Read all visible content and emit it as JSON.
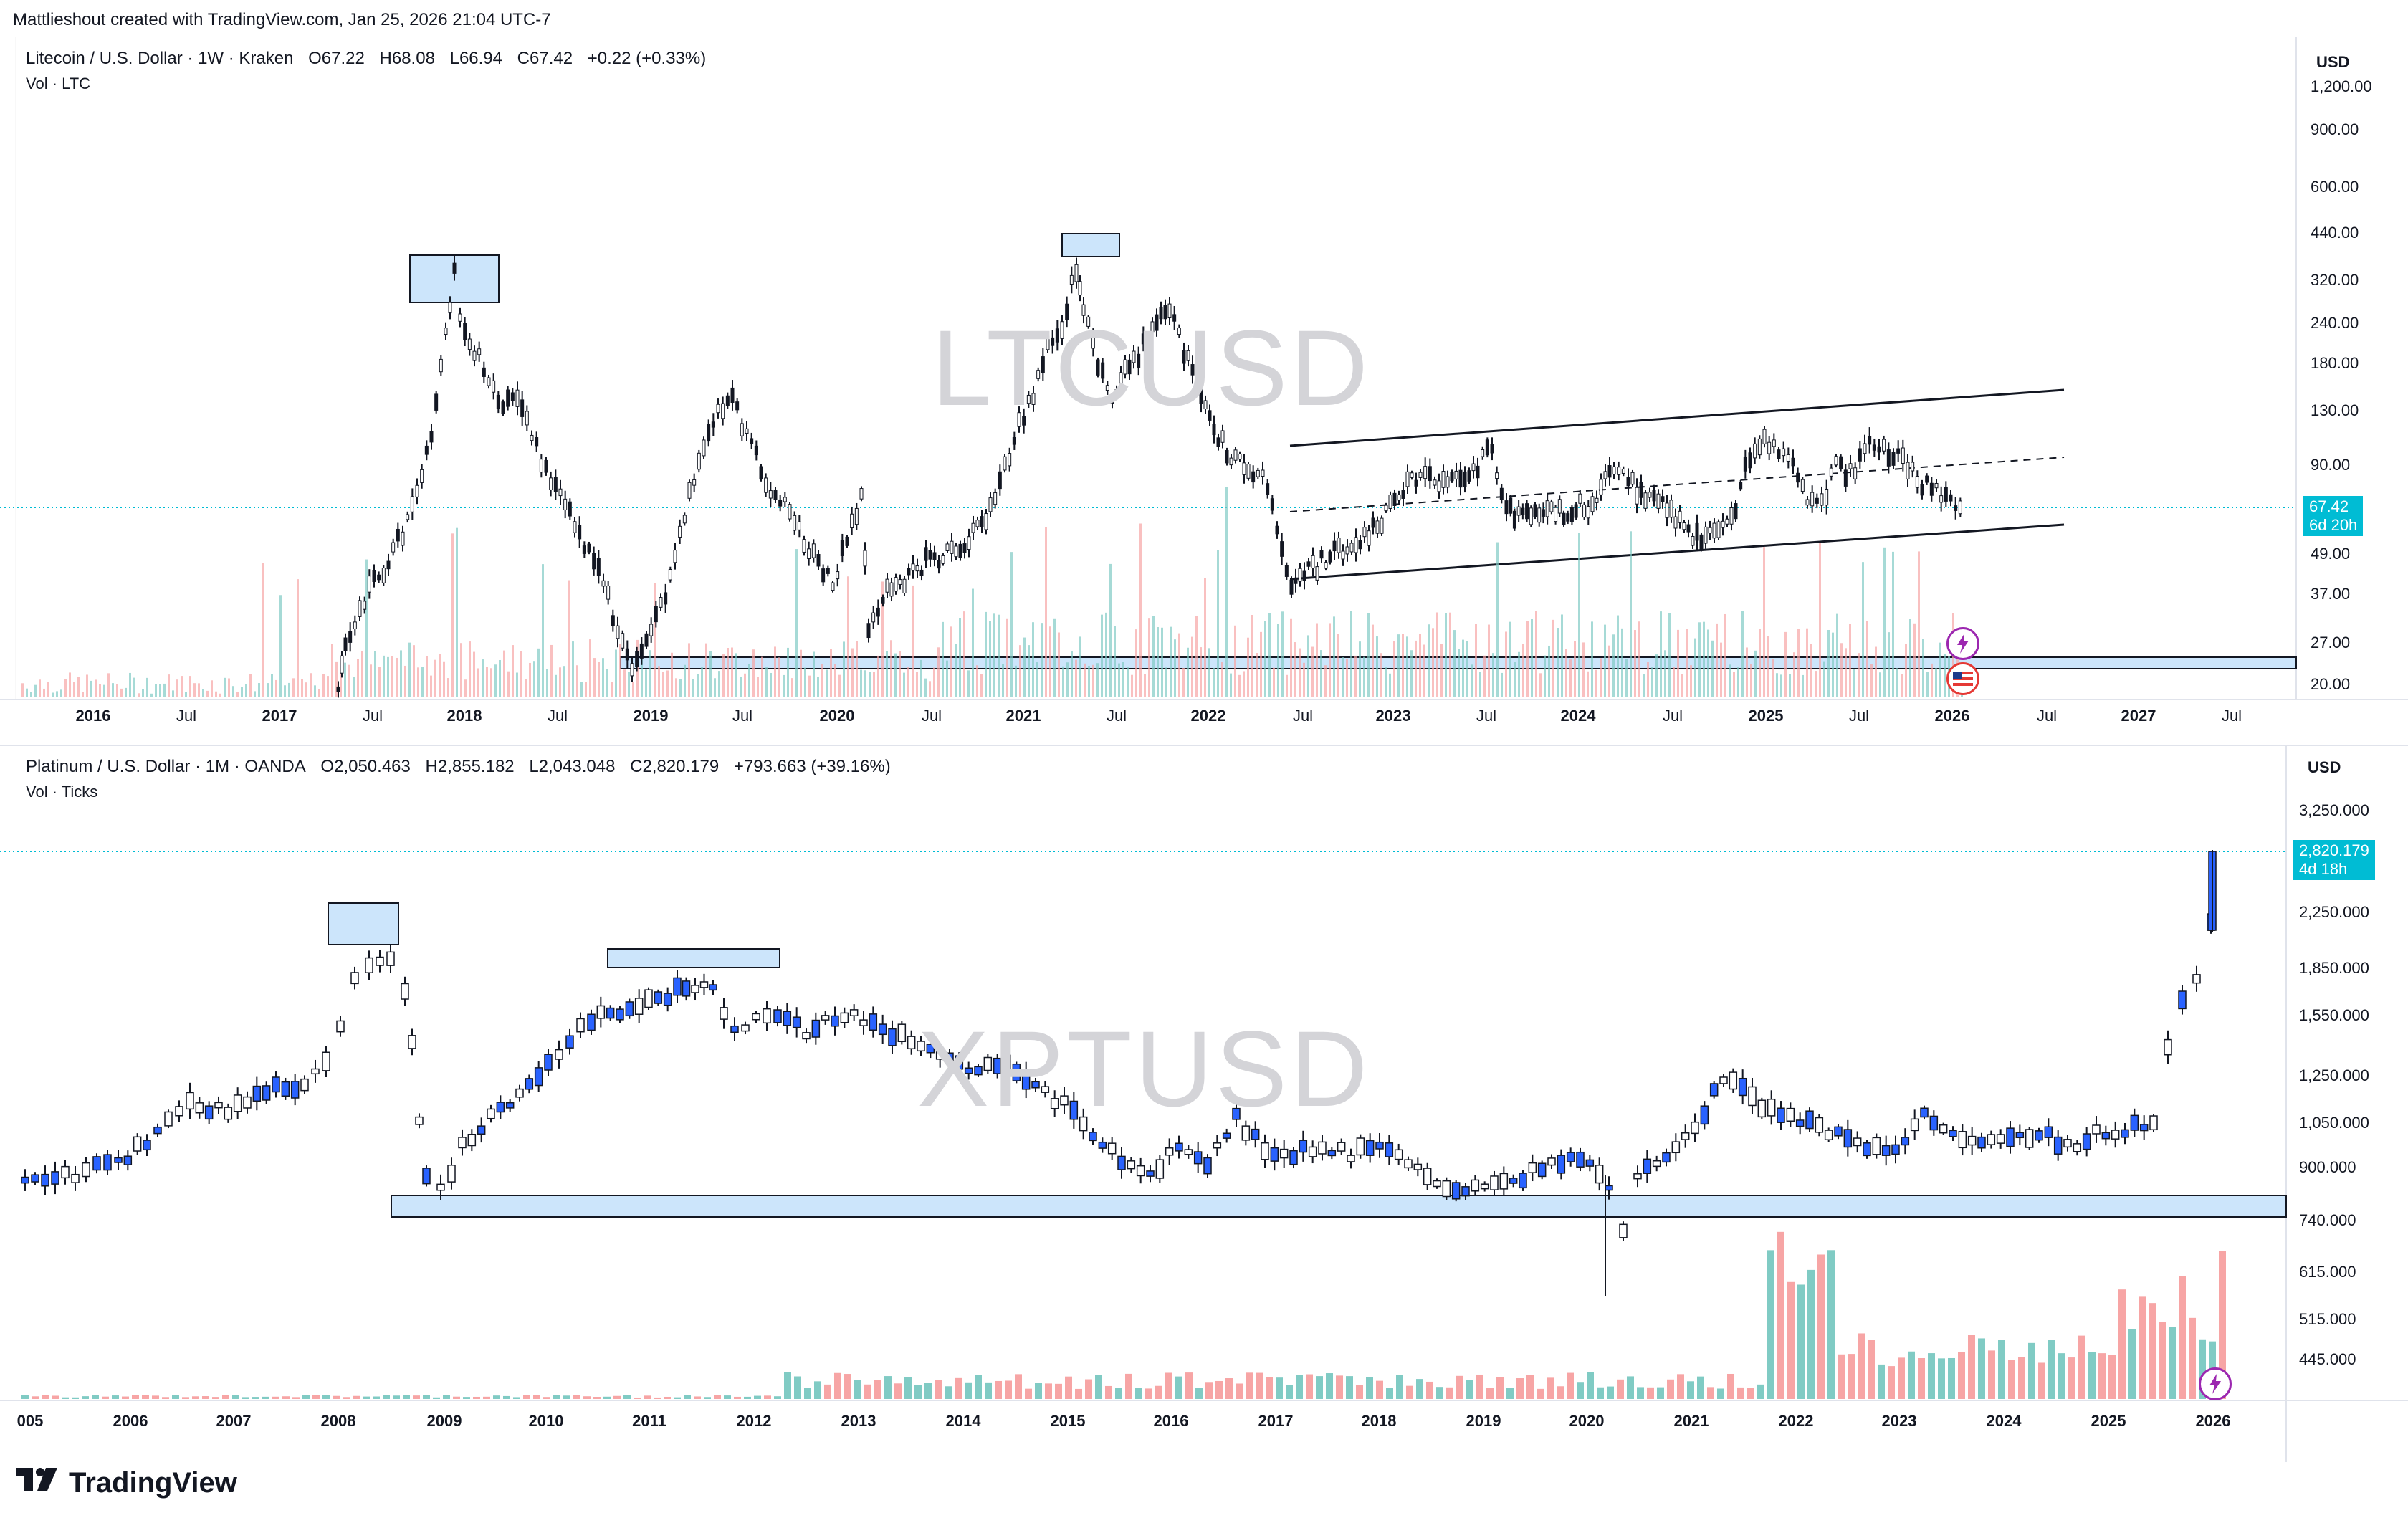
{
  "credit": "Mattlieshout created with TradingView.com, Jan 25, 2026 21:04 UTC-7",
  "footer": {
    "brand": "TradingView",
    "logo_icon": "tradingview-logo-icon"
  },
  "pane1": {
    "legend": {
      "symbol": "Litecoin / U.S. Dollar · 1W · Kraken",
      "o": "O67.22",
      "h": "H68.08",
      "l": "L66.94",
      "c": "C67.42",
      "change": "+0.22 (+0.33%)"
    },
    "sub": "Vol · LTC",
    "currency": "USD",
    "watermark": "LTCUSD",
    "y_ticks": [
      "1,200.00",
      "900.00",
      "600.00",
      "440.00",
      "320.00",
      "240.00",
      "180.00",
      "130.00",
      "90.00",
      "49.00",
      "37.00",
      "27.00",
      "20.00"
    ],
    "x_ticks": [
      "2016",
      "Jul",
      "2017",
      "Jul",
      "2018",
      "Jul",
      "2019",
      "Jul",
      "2020",
      "Jul",
      "2021",
      "Jul",
      "2022",
      "Jul",
      "2023",
      "Jul",
      "2024",
      "Jul",
      "2025",
      "Jul",
      "2026",
      "Jul",
      "2027",
      "Jul"
    ],
    "price_label": {
      "value": "67.42",
      "countdown": "6d 20h"
    },
    "icons": [
      "lightning-icon",
      "us-flag-icon"
    ]
  },
  "pane2": {
    "legend": {
      "symbol": "Platinum / U.S. Dollar · 1M · OANDA",
      "o": "O2,050.463",
      "h": "H2,855.182",
      "l": "L2,043.048",
      "c": "C2,820.179",
      "change": "+793.663 (+39.16%)"
    },
    "sub": "Vol · Ticks",
    "currency": "USD",
    "watermark": "XPTUSD",
    "y_ticks": [
      "3,250.000",
      "2,250.000",
      "1,850.000",
      "1,550.000",
      "1,250.000",
      "1,050.000",
      "900.000",
      "740.000",
      "615.000",
      "515.000",
      "445.000"
    ],
    "x_ticks": [
      "005",
      "2006",
      "2007",
      "2008",
      "2009",
      "2010",
      "2011",
      "2012",
      "2013",
      "2014",
      "2015",
      "2016",
      "2017",
      "2018",
      "2019",
      "2020",
      "2021",
      "2022",
      "2023",
      "2024",
      "2025",
      "2026"
    ],
    "price_label": {
      "value": "2,820.179",
      "countdown": "4d 18h"
    },
    "icons": [
      "lightning-icon"
    ]
  },
  "colors": {
    "up_ltc": "#131722",
    "bull_xpt": "#2962ff",
    "vol_up": "#80cbc4",
    "vol_down": "#f7a5a5",
    "zone": "#cce5fb",
    "price_line": "#00bcd4"
  }
}
